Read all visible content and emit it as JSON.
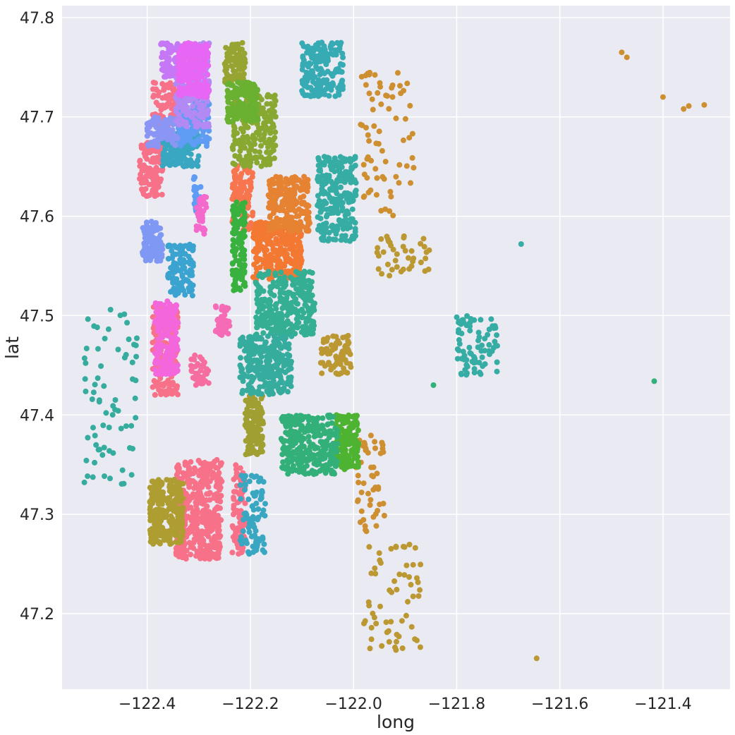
{
  "chart_data": {
    "type": "scatter",
    "title": "",
    "xlabel": "long",
    "ylabel": "lat",
    "xlim": [
      -122.565,
      -121.27
    ],
    "ylim": [
      47.124,
      47.812
    ],
    "xticks": [
      -122.4,
      -122.2,
      -122.0,
      -121.8,
      -121.6,
      -121.4
    ],
    "xtick_labels": [
      "−122.4",
      "−122.2",
      "−122.0",
      "−121.8",
      "−121.6",
      "−121.4"
    ],
    "yticks": [
      47.2,
      47.3,
      47.4,
      47.5,
      47.6,
      47.7,
      47.8
    ],
    "ytick_labels": [
      "47.2",
      "47.3",
      "47.4",
      "47.5",
      "47.6",
      "47.7",
      "47.8"
    ],
    "grid": true,
    "background_color": "#eaeaf2",
    "grid_color": "#ffffff",
    "marker_size": 7,
    "clusters": [
      {
        "color": "#f77189",
        "long": [
          -122.415,
          -122.37
        ],
        "lat": [
          47.62,
          47.675
        ],
        "n": 140
      },
      {
        "color": "#f77189",
        "long": [
          -122.39,
          -122.335
        ],
        "lat": [
          47.69,
          47.735
        ],
        "n": 90
      },
      {
        "color": "#f77189",
        "long": [
          -122.345,
          -122.255
        ],
        "lat": [
          47.255,
          47.355
        ],
        "n": 420
      },
      {
        "color": "#f77189",
        "long": [
          -122.235,
          -122.21
        ],
        "lat": [
          47.26,
          47.35
        ],
        "n": 90
      },
      {
        "color": "#f77189",
        "long": [
          -122.39,
          -122.34
        ],
        "lat": [
          47.42,
          47.51
        ],
        "n": 200
      },
      {
        "color": "#f7754f",
        "long": [
          -122.235,
          -122.195
        ],
        "lat": [
          47.585,
          47.655
        ],
        "n": 110
      },
      {
        "color": "#f37932",
        "long": [
          -122.195,
          -122.1
        ],
        "lat": [
          47.535,
          47.595
        ],
        "n": 300
      },
      {
        "color": "#e68332",
        "long": [
          -122.165,
          -122.085
        ],
        "lat": [
          47.585,
          47.64
        ],
        "n": 200
      },
      {
        "color": "#ce8f31",
        "long": [
          -121.99,
          -121.88
        ],
        "lat": [
          47.6,
          47.75
        ],
        "n": 70
      },
      {
        "color": "#ce8f31",
        "long": [
          -121.995,
          -121.94
        ],
        "lat": [
          47.28,
          47.38
        ],
        "n": 50
      },
      {
        "color": "#bb9832",
        "long": [
          -121.98,
          -121.87
        ],
        "lat": [
          47.16,
          47.27
        ],
        "n": 60
      },
      {
        "color": "#bb9832",
        "long": [
          -121.96,
          -121.85
        ],
        "lat": [
          47.54,
          47.58
        ],
        "n": 40
      },
      {
        "color": "#bb9832",
        "long": [
          -122.065,
          -122.005
        ],
        "lat": [
          47.44,
          47.48
        ],
        "n": 70
      },
      {
        "color": "#ae9d31",
        "long": [
          -122.395,
          -122.33
        ],
        "lat": [
          47.27,
          47.335
        ],
        "n": 260
      },
      {
        "color": "#a09f31",
        "long": [
          -122.21,
          -122.175
        ],
        "lat": [
          47.36,
          47.42
        ],
        "n": 130
      },
      {
        "color": "#97a431",
        "long": [
          -122.25,
          -122.21
        ],
        "lat": [
          47.735,
          47.775
        ],
        "n": 100
      },
      {
        "color": "#88a831",
        "long": [
          -122.235,
          -122.15
        ],
        "lat": [
          47.65,
          47.725
        ],
        "n": 220
      },
      {
        "color": "#6bb131",
        "long": [
          -122.245,
          -122.185
        ],
        "lat": [
          47.695,
          47.735
        ],
        "n": 160
      },
      {
        "color": "#4fb332",
        "long": [
          -122.035,
          -121.99
        ],
        "lat": [
          47.345,
          47.4
        ],
        "n": 180
      },
      {
        "color": "#39b13f",
        "long": [
          -122.235,
          -122.21
        ],
        "lat": [
          47.525,
          47.615
        ],
        "n": 110
      },
      {
        "color": "#33b07a",
        "long": [
          -122.14,
          -122.03
        ],
        "lat": [
          47.34,
          47.4
        ],
        "n": 280
      },
      {
        "color": "#34af94",
        "long": [
          -122.19,
          -122.075
        ],
        "lat": [
          47.48,
          47.545
        ],
        "n": 300
      },
      {
        "color": "#35ac9e",
        "long": [
          -122.22,
          -122.12
        ],
        "lat": [
          47.42,
          47.48
        ],
        "n": 280
      },
      {
        "color": "#35ac9e",
        "long": [
          -122.525,
          -122.42
        ],
        "lat": [
          47.33,
          47.51
        ],
        "n": 70
      },
      {
        "color": "#36ada4",
        "long": [
          -122.07,
          -121.995
        ],
        "lat": [
          47.575,
          47.66
        ],
        "n": 240
      },
      {
        "color": "#36ada4",
        "long": [
          -121.8,
          -121.72
        ],
        "lat": [
          47.44,
          47.5
        ],
        "n": 80
      },
      {
        "color": "#37abb4",
        "long": [
          -122.1,
          -122.02
        ],
        "lat": [
          47.72,
          47.775
        ],
        "n": 170
      },
      {
        "color": "#39a7c1",
        "long": [
          -122.37,
          -122.3
        ],
        "lat": [
          47.65,
          47.685
        ],
        "n": 160
      },
      {
        "color": "#39a7c1",
        "long": [
          -122.22,
          -122.17
        ],
        "lat": [
          47.26,
          47.34
        ],
        "n": 80
      },
      {
        "color": "#3ba3d0",
        "long": [
          -122.36,
          -122.31
        ],
        "lat": [
          47.52,
          47.575
        ],
        "n": 110
      },
      {
        "color": "#5f9cf4",
        "long": [
          -122.34,
          -122.28
        ],
        "lat": [
          47.67,
          47.72
        ],
        "n": 170
      },
      {
        "color": "#5f9cf4",
        "long": [
          -122.31,
          -122.295
        ],
        "lat": [
          47.6,
          47.64
        ],
        "n": 30
      },
      {
        "color": "#7e98f4",
        "long": [
          -122.41,
          -122.37
        ],
        "lat": [
          47.555,
          47.595
        ],
        "n": 90
      },
      {
        "color": "#8a95f4",
        "long": [
          -122.4,
          -122.34
        ],
        "lat": [
          47.67,
          47.7
        ],
        "n": 90
      },
      {
        "color": "#b38af4",
        "long": [
          -122.345,
          -122.28
        ],
        "lat": [
          47.69,
          47.775
        ],
        "n": 240
      },
      {
        "color": "#c677f5",
        "long": [
          -122.375,
          -122.34
        ],
        "lat": [
          47.74,
          47.775
        ],
        "n": 70
      },
      {
        "color": "#e866f4",
        "long": [
          -122.34,
          -122.28
        ],
        "lat": [
          47.72,
          47.775
        ],
        "n": 200
      },
      {
        "color": "#f467dc",
        "long": [
          -122.385,
          -122.34
        ],
        "lat": [
          47.44,
          47.515
        ],
        "n": 190
      },
      {
        "color": "#f469cc",
        "long": [
          -122.305,
          -122.285
        ],
        "lat": [
          47.58,
          47.62
        ],
        "n": 40
      },
      {
        "color": "#f56bb5",
        "long": [
          -122.27,
          -122.24
        ],
        "lat": [
          47.48,
          47.51
        ],
        "n": 50
      },
      {
        "color": "#f66ea0",
        "long": [
          -122.315,
          -122.28
        ],
        "lat": [
          47.43,
          47.46
        ],
        "n": 40
      }
    ],
    "outliers": [
      {
        "long": -121.48,
        "lat": 47.765,
        "color": "#ce8f31"
      },
      {
        "long": -121.47,
        "lat": 47.76,
        "color": "#ce8f31"
      },
      {
        "long": -121.4,
        "lat": 47.72,
        "color": "#ce8f31"
      },
      {
        "long": -121.36,
        "lat": 47.708,
        "color": "#ce8f31"
      },
      {
        "long": -121.35,
        "lat": 47.711,
        "color": "#ce8f31"
      },
      {
        "long": -121.32,
        "lat": 47.712,
        "color": "#ce8f31"
      },
      {
        "long": -121.675,
        "lat": 47.572,
        "color": "#36ada4"
      },
      {
        "long": -121.417,
        "lat": 47.434,
        "color": "#33b07a"
      },
      {
        "long": -121.645,
        "lat": 47.155,
        "color": "#bb9832"
      },
      {
        "long": -121.845,
        "lat": 47.43,
        "color": "#33b07a"
      }
    ]
  }
}
